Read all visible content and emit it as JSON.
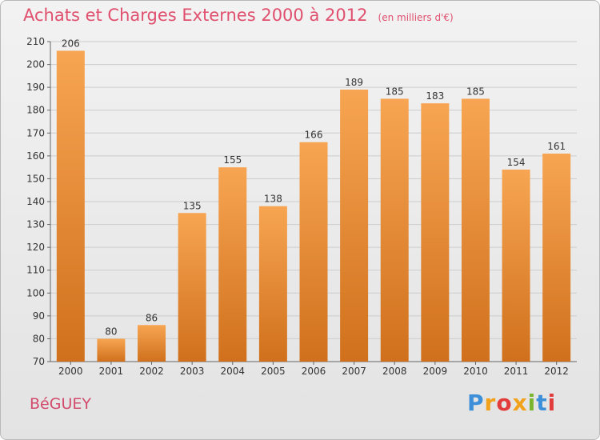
{
  "header": {
    "title": "Achats et Charges Externes 2000 à 2012",
    "subtitle": "(en milliers d'€)"
  },
  "footer": {
    "commune": "BéGUEY",
    "logo_letters": [
      "P",
      "r",
      "o",
      "x",
      "i",
      "t",
      "i"
    ]
  },
  "colors": {
    "bar_top": "#f7a552",
    "bar_bottom": "#d0701c",
    "title": "#e0506e",
    "grid": "#cccccc"
  },
  "chart_data": {
    "type": "bar",
    "categories": [
      "2000",
      "2001",
      "2002",
      "2003",
      "2004",
      "2005",
      "2006",
      "2007",
      "2008",
      "2009",
      "2010",
      "2011",
      "2012"
    ],
    "values": [
      206,
      80,
      86,
      135,
      155,
      138,
      166,
      189,
      185,
      183,
      185,
      154,
      161
    ],
    "title": "Achats et Charges Externes 2000 à 2012",
    "subtitle": "(en milliers d'€)",
    "xlabel": "",
    "ylabel": "",
    "ylim": [
      70,
      210
    ],
    "yticks": [
      70,
      80,
      90,
      100,
      110,
      120,
      130,
      140,
      150,
      160,
      170,
      180,
      190,
      200,
      210
    ],
    "grid": true,
    "data_labels": true
  }
}
